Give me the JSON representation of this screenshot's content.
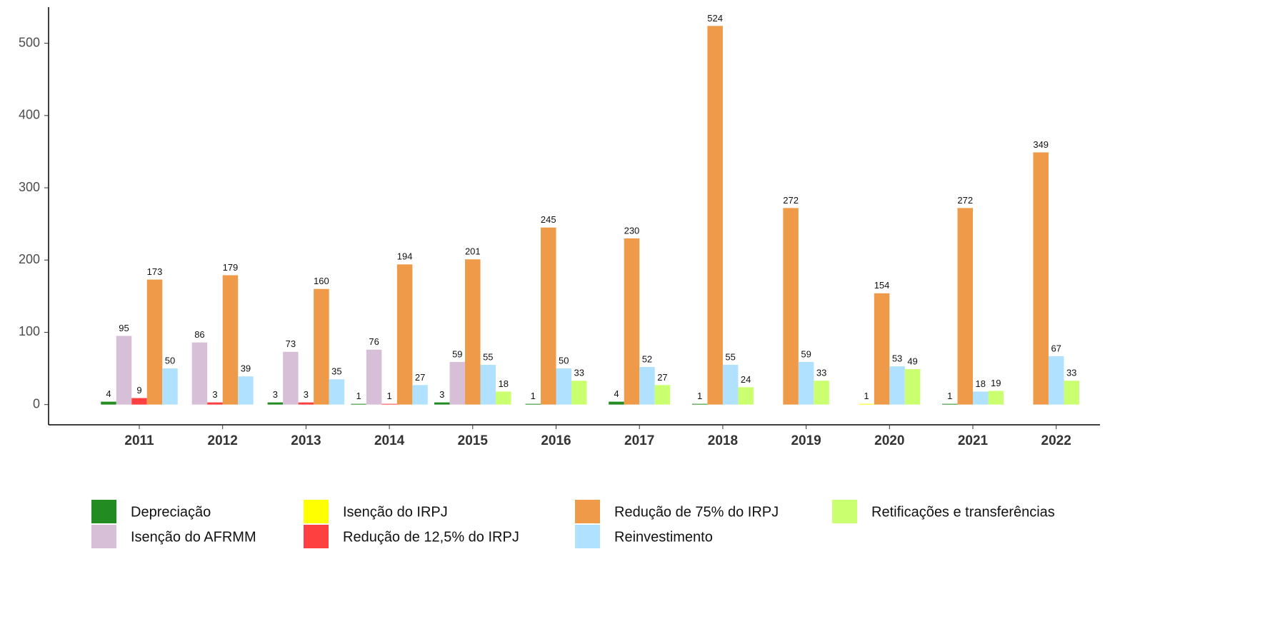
{
  "chart_data": {
    "type": "bar",
    "categories": [
      "2011",
      "2012",
      "2013",
      "2014",
      "2015",
      "2016",
      "2017",
      "2018",
      "2019",
      "2020",
      "2021",
      "2022"
    ],
    "series": [
      {
        "name": "Depreciação",
        "color": "#228B22",
        "values": [
          4,
          null,
          3,
          1,
          3,
          1,
          4,
          1,
          null,
          null,
          1,
          null
        ]
      },
      {
        "name": "Isenção do AFRMM",
        "color": "#D8BFD8",
        "values": [
          95,
          86,
          73,
          76,
          59,
          null,
          null,
          null,
          null,
          null,
          null,
          null
        ]
      },
      {
        "name": "Isenção do IRPJ",
        "color": "#FFFF00",
        "values": [
          null,
          null,
          null,
          null,
          null,
          null,
          null,
          null,
          null,
          1,
          null,
          null
        ]
      },
      {
        "name": "Redução de 12,5% do IRPJ",
        "color": "#FF4040",
        "values": [
          9,
          3,
          3,
          1,
          null,
          null,
          null,
          null,
          null,
          null,
          null,
          null
        ]
      },
      {
        "name": "Redução de 75% do IRPJ",
        "color": "#EE9A49",
        "values": [
          173,
          179,
          160,
          194,
          201,
          245,
          230,
          524,
          272,
          154,
          272,
          349
        ]
      },
      {
        "name": "Reinvestimento",
        "color": "#B0E2FF",
        "values": [
          50,
          39,
          35,
          27,
          55,
          50,
          52,
          55,
          59,
          53,
          18,
          67
        ]
      },
      {
        "name": "Retificações e transferências",
        "color": "#CAFF70",
        "values": [
          null,
          null,
          null,
          null,
          18,
          33,
          27,
          24,
          33,
          49,
          19,
          33
        ]
      }
    ],
    "ylim": [
      -28,
      550
    ],
    "yticks": [
      0,
      100,
      200,
      300,
      400,
      500
    ],
    "legend": "bottom"
  }
}
